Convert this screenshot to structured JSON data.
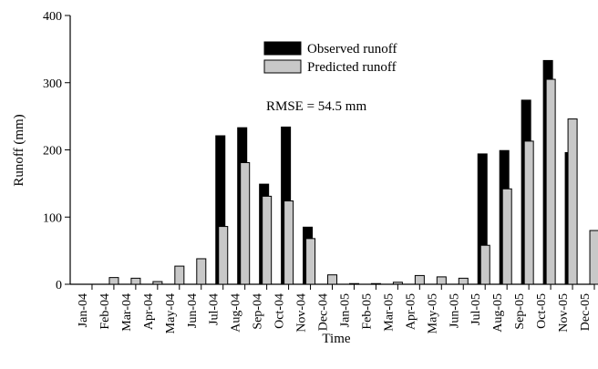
{
  "chart_data": {
    "type": "bar",
    "categories": [
      "Jan-04",
      "Feb-04",
      "Mar-04",
      "Apr-04",
      "May-04",
      "Jun-04",
      "Jul-04",
      "Aug-04",
      "Sep-04",
      "Oct-04",
      "Nov-04",
      "Dec-04",
      "Jan-05",
      "Feb-05",
      "Mar-05",
      "Apr-05",
      "May-05",
      "Jun-05",
      "Jul-05",
      "Aug-05",
      "Sep-05",
      "Oct-05",
      "Nov-05",
      "Dec-05"
    ],
    "series": [
      {
        "name": "Observed runoff",
        "color": "#000000",
        "values": [
          0,
          0,
          0,
          0,
          0,
          0,
          221,
          233,
          149,
          234,
          85,
          0,
          0,
          0,
          0,
          0,
          0,
          0,
          194,
          199,
          274,
          333,
          196,
          0
        ]
      },
      {
        "name": "Predicted runoff",
        "color": "#c8c8c8",
        "values": [
          0,
          10,
          9,
          4,
          27,
          38,
          86,
          181,
          131,
          124,
          68,
          14,
          1,
          1,
          3,
          13,
          11,
          9,
          58,
          142,
          213,
          305,
          246,
          80
        ]
      }
    ],
    "xlabel": "Time",
    "ylabel": "Runoff (mm)",
    "ylim": [
      0,
      400
    ],
    "yticks": [
      0,
      100,
      200,
      300,
      400
    ],
    "legend": {
      "placement": "top-center",
      "entries": [
        "Observed runoff",
        "Predicted runoff"
      ]
    },
    "annotations": [
      "RMSE = 54.5 mm"
    ],
    "grid": false
  }
}
